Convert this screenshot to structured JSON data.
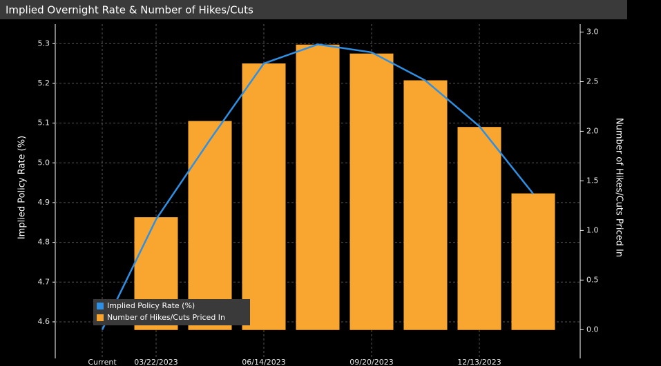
{
  "chart_data": {
    "type": "combo",
    "title": "Implied Overnight Rate & Number of Hikes/Cuts",
    "ylabel": "Implied Policy Rate (%)",
    "y2label": "Number of Hikes/Cuts Priced In",
    "categories": [
      "Current",
      "03/22/2023",
      null,
      "06/14/2023",
      null,
      "09/20/2023",
      null,
      "12/13/2023",
      null
    ],
    "series": [
      {
        "name": "Implied Policy Rate (%)",
        "type": "line",
        "axis": "y",
        "color": "#2e8fe3",
        "values": [
          4.58,
          4.858,
          5.058,
          5.25,
          5.298,
          5.278,
          5.207,
          5.092,
          4.922
        ]
      },
      {
        "name": "Number of Hikes/Cuts Priced In",
        "type": "bar",
        "axis": "y2",
        "color": "#f8a630",
        "values": [
          0,
          1.13,
          2.1,
          2.68,
          2.87,
          2.78,
          2.51,
          2.04,
          1.37
        ]
      }
    ],
    "ylim": [
      4.508,
      5.349
    ],
    "yticks": [
      4.6,
      4.7,
      4.8,
      4.9,
      {
        "value": 5,
        "label": "5.0"
      },
      5.1,
      5.2,
      5.3
    ],
    "y2lim": [
      -0.29,
      3.08
    ],
    "y2ticks": [
      {
        "value": 0,
        "label": "0.0"
      },
      0.5,
      {
        "value": 1,
        "label": "1.0"
      },
      1.5,
      {
        "value": 2,
        "label": "2.0"
      },
      2.5,
      {
        "value": 3,
        "label": "3.0"
      }
    ],
    "grid": true,
    "legend": "lower left"
  }
}
